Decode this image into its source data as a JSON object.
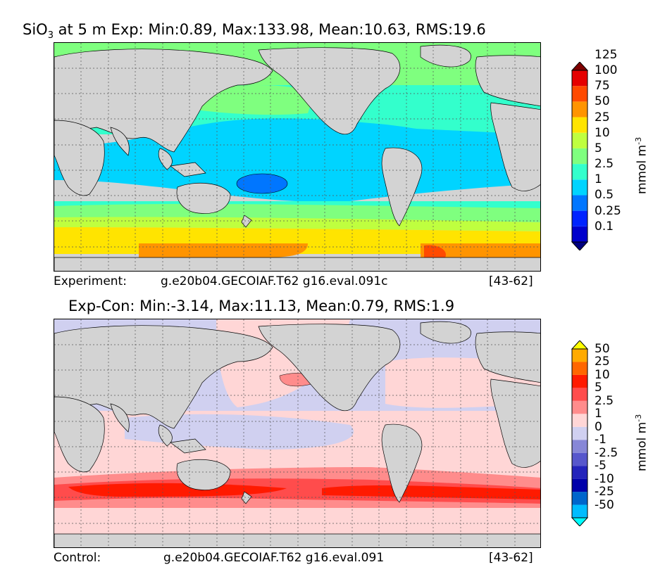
{
  "colors": {
    "land": "#d3d3d3",
    "top_levels": [
      "#00007f",
      "#0000cc",
      "#0024ff",
      "#0076ff",
      "#00d4ff",
      "#33ffcc",
      "#7fff7f",
      "#bfff3f",
      "#ffe400",
      "#ff9400",
      "#ff4a00",
      "#e50000",
      "#7f0000"
    ],
    "diff_levels": [
      "#00ffff",
      "#00bcff",
      "#0066cc",
      "#0000aa",
      "#2323bb",
      "#5757cc",
      "#8787d7",
      "#d0d0f0",
      "#ffd6d6",
      "#ff8c8c",
      "#ff4c4c",
      "#ff1a00",
      "#ff6600",
      "#ffaa00",
      "#ffff00"
    ]
  },
  "chart_data": [
    {
      "type": "heatmap",
      "title": "SiO3 at 5 m Exp: Min:0.89, Max:133.98, Mean:10.63, RMS:19.6",
      "title_parts": {
        "species": "SiO",
        "sub": "3",
        "rest": " at 5 m Exp: Min:0.89, Max:133.98, Mean:10.63, RMS:19.6"
      },
      "grid": true,
      "colorbar": {
        "ticks": [
          "0.1",
          "0.25",
          "0.5",
          "1",
          "2.5",
          "5",
          "10",
          "25",
          "50",
          "75",
          "100",
          "125"
        ],
        "unit": "mmol m",
        "unit_sup": "-3",
        "extend": "both"
      },
      "footer": {
        "left": "Experiment:",
        "case": "g.e20b04.GECOIAF.T62 g16.eval.091c",
        "right": "[43-62]"
      }
    },
    {
      "type": "heatmap",
      "title": "Exp-Con: Min:-3.14, Max:11.13, Mean:0.79, RMS:1.9",
      "grid": true,
      "colorbar": {
        "ticks": [
          "-50",
          "-25",
          "-10",
          "-5",
          "-2.5",
          "-1",
          "0",
          "1",
          "2.5",
          "5",
          "10",
          "25",
          "50"
        ],
        "unit": "mmol m",
        "unit_sup": "-3",
        "extend": "both"
      },
      "footer": {
        "left": "Control:",
        "case": "g.e20b04.GECOIAF.T62 g16.eval.091",
        "right": "[43-62]"
      }
    }
  ]
}
